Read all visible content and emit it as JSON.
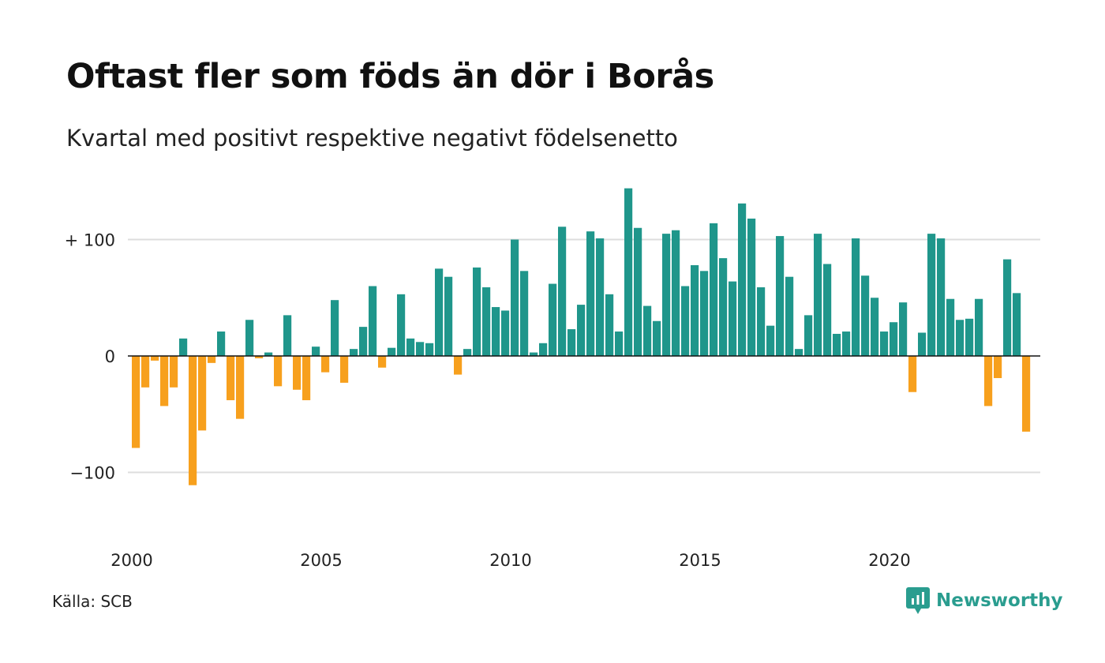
{
  "header": {
    "title": "Oftast fler som föds än dör i Borås",
    "subtitle": "Kvartal med positivt respektive negativt födelsenetto"
  },
  "footer": {
    "source": "Källa: SCB",
    "brand": "Newsworthy"
  },
  "icons": {
    "brand_logo": "newsworthy-chart-icon"
  },
  "colors": {
    "positive": "#1f968b",
    "negative": "#f7a01d",
    "brand": "#2a9d8f"
  },
  "chart_data": {
    "type": "bar",
    "title": "Oftast fler som föds än dör i Borås",
    "subtitle": "Kvartal med positivt respektive negativt födelsenetto",
    "xlabel": "",
    "ylabel": "",
    "ylim": [
      -150,
      150
    ],
    "grid": true,
    "ytick_values": [
      100,
      0,
      -100
    ],
    "ytick_labels": [
      "+ 100",
      "0",
      "−100"
    ],
    "xtick_labels": [
      "2000",
      "2005",
      "2010",
      "2015",
      "2020"
    ],
    "start_year": 2000,
    "periods_per_year": 4,
    "values": [
      -79,
      -27,
      -4,
      -43,
      -27,
      15,
      -111,
      -64,
      -6,
      21,
      -38,
      -54,
      31,
      -2,
      3,
      -26,
      35,
      -29,
      -38,
      8,
      -14,
      48,
      -23,
      6,
      25,
      60,
      -10,
      7,
      53,
      15,
      12,
      11,
      75,
      68,
      -16,
      6,
      76,
      59,
      42,
      39,
      100,
      73,
      3,
      11,
      62,
      111,
      23,
      44,
      107,
      101,
      53,
      21,
      144,
      110,
      43,
      30,
      105,
      108,
      60,
      78,
      73,
      114,
      84,
      64,
      131,
      118,
      59,
      26,
      103,
      68,
      6,
      35,
      105,
      79,
      19,
      21,
      101,
      69,
      50,
      21,
      29,
      46,
      -31,
      20,
      105,
      101,
      49,
      31,
      32,
      49,
      -43,
      -19,
      83,
      54,
      -65
    ]
  }
}
